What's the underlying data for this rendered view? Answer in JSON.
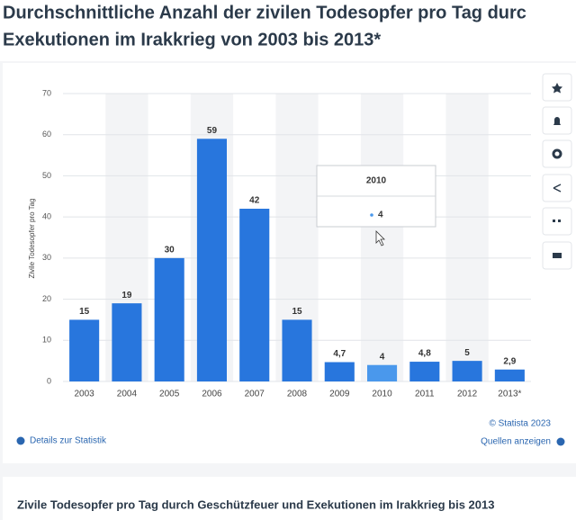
{
  "page": {
    "title_lines": [
      "Durchschnittliche Anzahl der zivilen Todesopfer pro Tag durc",
      "Exekutionen im Irakkrieg von 2003 bis 2013*"
    ],
    "copyright": "© Statista 2023",
    "details_link": "Details zur Statistik",
    "sources_link": "Quellen anzeigen",
    "section_heading": "Zivile Todesopfer pro Tag durch Geschützfeuer und Exekutionen im Irakkrieg bis 2013"
  },
  "chart_data": {
    "type": "bar",
    "y_label": "Zivile Todesopfer pro Tag",
    "categories": [
      "2003",
      "2004",
      "2005",
      "2006",
      "2007",
      "2008",
      "2009",
      "2010",
      "2011",
      "2012",
      "2013*"
    ],
    "values": [
      15,
      19,
      30,
      59,
      42,
      15,
      4.7,
      4,
      4.8,
      5,
      2.9
    ],
    "value_labels": [
      "15",
      "19",
      "30",
      "59",
      "42",
      "15",
      "4,7",
      "4",
      "4,8",
      "5",
      "2,9"
    ],
    "colors": [
      "#2876dd",
      "#2876dd",
      "#2876dd",
      "#2876dd",
      "#2876dd",
      "#2876dd",
      "#2876dd",
      "#4a98ec",
      "#2876dd",
      "#2876dd",
      "#2876dd"
    ],
    "ylim": [
      0,
      70
    ],
    "yticks": [
      0,
      10,
      20,
      30,
      40,
      50,
      60,
      70
    ],
    "grid": true
  }
}
